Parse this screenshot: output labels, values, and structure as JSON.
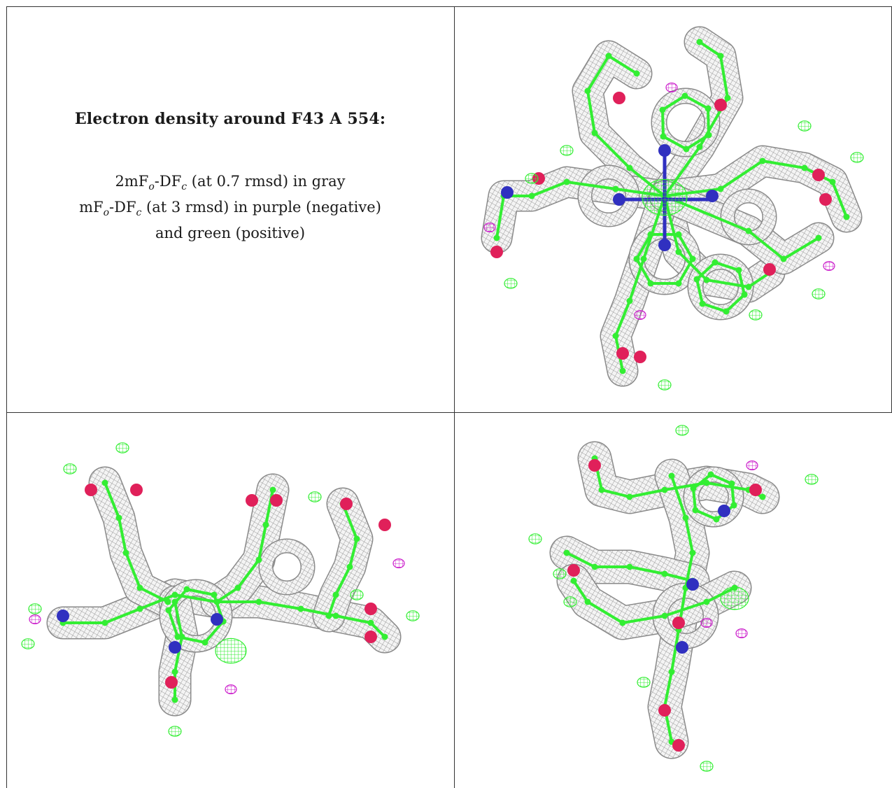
{
  "caption": {
    "title": "Electron density around F43 A 554:",
    "line1": {
      "prefix": "2mF",
      "sub1": "o",
      "mid": "-DF",
      "sub2": "c",
      "suffix": " (at 0.7 rmsd) in gray"
    },
    "line2": {
      "prefix": "mF",
      "sub1": "o",
      "mid": "-DF",
      "sub2": "c",
      "suffix": " (at 3 rmsd) in purple (negative)"
    },
    "line3": "and green (positive)"
  },
  "colors": {
    "mesh_gray": "#9a9a9a",
    "positive_green": "#33ee33",
    "negative_purple": "#cc22cc",
    "oxygen": "#e0205a",
    "nitrogen": "#3030c0",
    "border": "#333333"
  },
  "panels": [
    {
      "view": "top-right",
      "content": "ligand-density-map"
    },
    {
      "view": "bottom-left",
      "content": "ligand-density-map"
    },
    {
      "view": "bottom-right",
      "content": "ligand-density-map"
    }
  ]
}
